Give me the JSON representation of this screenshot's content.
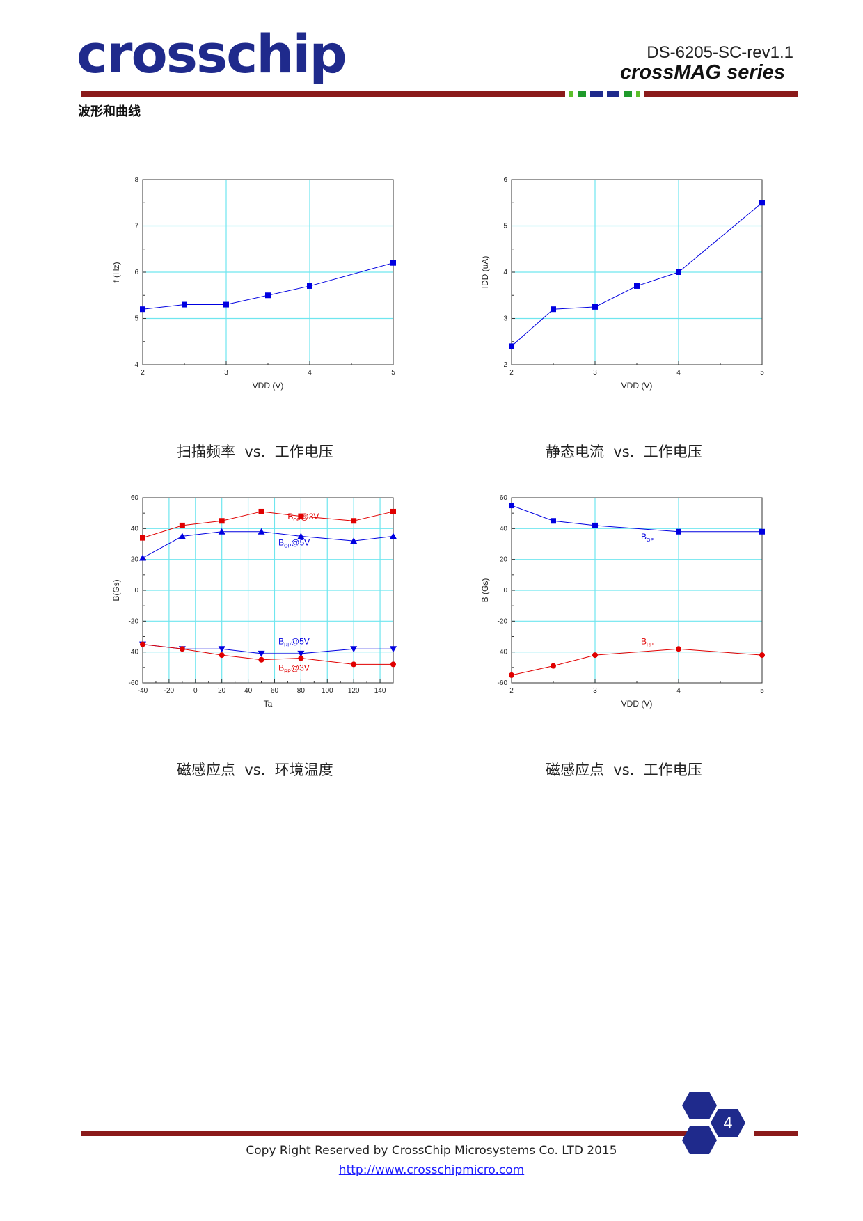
{
  "header": {
    "logo": "crosschip",
    "doc_id": "DS-6205-SC-rev1.1",
    "series": "crossMAG series",
    "colors": {
      "brand_blue": "#1f2a8c",
      "bar_red": "#8b1a1a",
      "deco_green": "#5cbf2a",
      "deco_blue": "#1f2a8c"
    }
  },
  "section_title": "波形和曲线",
  "chart_data": [
    {
      "type": "line",
      "xlabel": "VDD (V)",
      "ylabel": "f (Hz)",
      "xlim": [
        2,
        5
      ],
      "ylim": [
        4,
        8
      ],
      "xticks": [
        "2",
        "3",
        "4",
        "5"
      ],
      "yticks": [
        "4",
        "5",
        "6",
        "7",
        "8"
      ],
      "grid": true,
      "series": [
        {
          "color": "#0000e0",
          "marker": "square",
          "x": [
            2,
            2.5,
            3,
            3.5,
            4,
            5
          ],
          "values": [
            5.2,
            5.3,
            5.3,
            5.5,
            5.7,
            6.2
          ]
        }
      ],
      "caption": "扫描频率  vs.  工作电压"
    },
    {
      "type": "line",
      "xlabel": "VDD (V)",
      "ylabel": "IDD (uA)",
      "xlim": [
        2,
        5
      ],
      "ylim": [
        2,
        6
      ],
      "xticks": [
        "2",
        "3",
        "4",
        "5"
      ],
      "yticks": [
        "2",
        "3",
        "4",
        "5",
        "6"
      ],
      "grid": true,
      "series": [
        {
          "color": "#0000e0",
          "marker": "square",
          "x": [
            2,
            2.5,
            3,
            3.5,
            4,
            5
          ],
          "values": [
            2.4,
            3.2,
            3.25,
            3.7,
            4.0,
            5.5
          ]
        }
      ],
      "caption": "静态电流  vs.  工作电压"
    },
    {
      "type": "line",
      "xlabel": "Ta",
      "ylabel": "B(Gs)",
      "xlim": [
        -40,
        150
      ],
      "ylim": [
        -60,
        60
      ],
      "xticks": [
        "-40",
        "-20",
        "0",
        "20",
        "40",
        "60",
        "80",
        "100",
        "120",
        "140"
      ],
      "yticks": [
        "-60",
        "-40",
        "-20",
        "0",
        "20",
        "40",
        "60"
      ],
      "grid": true,
      "series": [
        {
          "label_main": "B",
          "label_sub": "OP",
          "label_tail": "@3V",
          "color": "#e00000",
          "marker": "square",
          "x": [
            -40,
            -10,
            20,
            50,
            80,
            120,
            150
          ],
          "values": [
            34,
            42,
            45,
            51,
            48,
            45,
            51
          ]
        },
        {
          "label_main": "B",
          "label_sub": "OP",
          "label_tail": "@5V",
          "color": "#0000e0",
          "marker": "triangle-up",
          "x": [
            -40,
            -10,
            20,
            50,
            80,
            120,
            150
          ],
          "values": [
            21,
            35,
            38,
            38,
            35,
            32,
            35
          ]
        },
        {
          "label_main": "B",
          "label_sub": "RP",
          "label_tail": "@5V",
          "color": "#0000e0",
          "marker": "triangle-down",
          "x": [
            -40,
            -10,
            20,
            50,
            80,
            120,
            150
          ],
          "values": [
            -35,
            -38,
            -38,
            -41,
            -41,
            -38,
            -38
          ]
        },
        {
          "label_main": "B",
          "label_sub": "RP",
          "label_tail": "@3V",
          "color": "#e00000",
          "marker": "circle",
          "x": [
            -40,
            -10,
            20,
            50,
            80,
            120,
            150
          ],
          "values": [
            -35,
            -38,
            -42,
            -45,
            -44,
            -48,
            -48
          ]
        }
      ],
      "caption": "磁感应点  vs.  环境温度"
    },
    {
      "type": "line",
      "xlabel": "VDD (V)",
      "ylabel": "B (Gs)",
      "xlim": [
        2,
        5
      ],
      "ylim": [
        -60,
        60
      ],
      "xticks": [
        "2",
        "3",
        "4",
        "5"
      ],
      "yticks": [
        "-60",
        "-40",
        "-20",
        "0",
        "20",
        "40",
        "60"
      ],
      "grid": true,
      "series": [
        {
          "label_main": "B",
          "label_sub": "OP",
          "label_tail": "",
          "color": "#0000e0",
          "marker": "square",
          "x": [
            2,
            2.5,
            3,
            4,
            5
          ],
          "values": [
            55,
            45,
            42,
            38,
            38
          ]
        },
        {
          "label_main": "B",
          "label_sub": "RP",
          "label_tail": "",
          "color": "#e00000",
          "marker": "circle",
          "x": [
            2,
            2.5,
            3,
            4,
            5
          ],
          "values": [
            -55,
            -49,
            -42,
            -38,
            -42
          ]
        }
      ],
      "caption": "磁感应点  vs.  工作电压"
    }
  ],
  "footer": {
    "page_number": "4",
    "copyright": "Copy Right Reserved by CrossChip Microsystems Co. LTD 2015",
    "url": "http://www.crosschipmicro.com"
  }
}
